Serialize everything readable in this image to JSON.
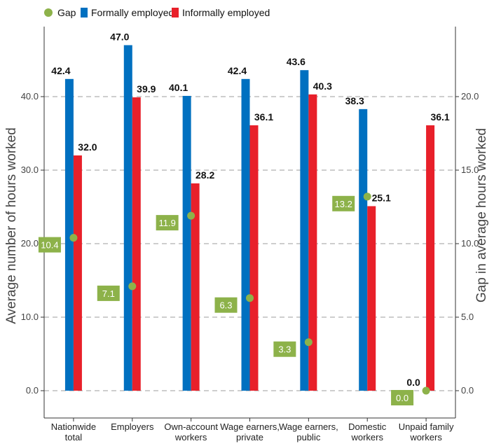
{
  "chart_data": {
    "type": "bar",
    "categories": [
      [
        "Nationwide",
        "total"
      ],
      [
        "Employers"
      ],
      [
        "Own-account",
        "workers"
      ],
      [
        "Wage earners,",
        "private"
      ],
      [
        "Wage earners,",
        "public"
      ],
      [
        "Domestic",
        "workers"
      ],
      [
        "Unpaid family",
        "workers"
      ]
    ],
    "series": [
      {
        "name": "Formally employed",
        "color": "#0070C0",
        "values": [
          42.4,
          47.0,
          40.1,
          42.4,
          43.6,
          38.3,
          0.0
        ],
        "labels": [
          "42.4",
          "47.0",
          "40.1",
          "42.4",
          "43.6",
          "38.3",
          "0.0"
        ]
      },
      {
        "name": "Informally employed",
        "color": "#E8202A",
        "values": [
          32.0,
          39.9,
          28.2,
          36.1,
          40.3,
          25.1,
          36.1
        ],
        "labels": [
          "32.0",
          "39.9",
          "28.2",
          "36.1",
          "40.3",
          "25.1",
          "36.1"
        ]
      }
    ],
    "gap": {
      "name": "Gap",
      "color": "#8DB24A",
      "values": [
        10.4,
        7.1,
        11.9,
        6.3,
        3.3,
        13.2,
        0.0
      ],
      "labels": [
        "10.4",
        "7.1",
        "11.9",
        "6.3",
        "3.3",
        "13.2",
        "0.0"
      ]
    },
    "ylabel": "Average number of hours worked",
    "y2label": "Gap in average hours worked",
    "ylim": [
      0,
      47.0
    ],
    "y2lim": [
      0,
      23.5
    ],
    "yticks": [
      "0.0",
      "10.0",
      "20.0",
      "30.0",
      "40.0"
    ],
    "y2ticks": [
      "0.0",
      "5.0",
      "10.0",
      "15.0",
      "20.0"
    ],
    "grid": "horizontal dashed",
    "legend": "top-left"
  }
}
